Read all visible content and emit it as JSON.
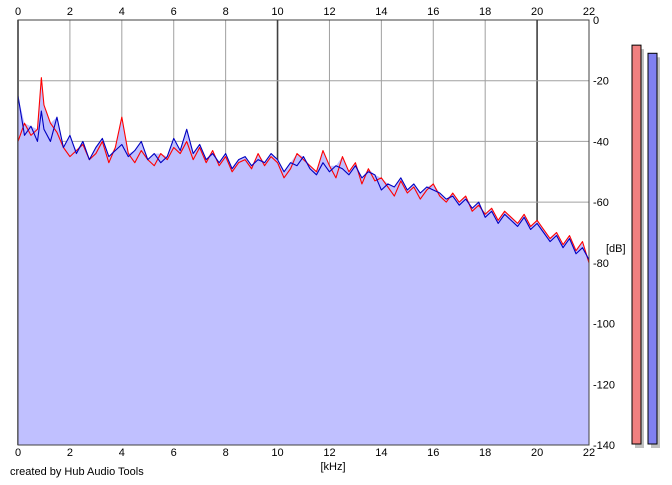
{
  "chart_data": {
    "type": "line",
    "xlabel": "[kHz]",
    "ylabel": "[dB]",
    "xlim": [
      0,
      22
    ],
    "ylim": [
      -140,
      0
    ],
    "x_ticks": [
      0,
      2,
      4,
      6,
      8,
      10,
      12,
      14,
      16,
      18,
      20,
      22
    ],
    "y_ticks": [
      0,
      -20,
      -40,
      -60,
      -80,
      -100,
      -120,
      -140
    ],
    "grid": true,
    "fill_color": "#c0c0ff",
    "series": [
      {
        "color": "#ff0000",
        "x": [
          0,
          0.25,
          0.5,
          0.75,
          0.9,
          1,
          1.25,
          1.5,
          1.75,
          2,
          2.25,
          2.5,
          2.75,
          3,
          3.25,
          3.5,
          3.75,
          4,
          4.25,
          4.5,
          4.75,
          5,
          5.25,
          5.5,
          5.75,
          6,
          6.25,
          6.5,
          6.75,
          7,
          7.25,
          7.5,
          7.75,
          8,
          8.25,
          8.5,
          8.75,
          9,
          9.25,
          9.5,
          9.75,
          10,
          10.25,
          10.5,
          10.75,
          11,
          11.25,
          11.5,
          11.75,
          12,
          12.25,
          12.5,
          12.75,
          13,
          13.25,
          13.5,
          13.75,
          14,
          14.25,
          14.5,
          14.75,
          15,
          15.25,
          15.5,
          15.75,
          16,
          16.25,
          16.5,
          16.75,
          17,
          17.25,
          17.5,
          17.75,
          18,
          18.25,
          18.5,
          18.75,
          19,
          19.25,
          19.5,
          19.75,
          20,
          20.25,
          20.5,
          20.75,
          21,
          21.25,
          21.5,
          21.75,
          22
        ],
        "values": [
          -40,
          -34,
          -38,
          -36,
          -19,
          -28,
          -34,
          -37,
          -42,
          -45,
          -43,
          -41,
          -46,
          -44,
          -40,
          -47,
          -42,
          -32,
          -44,
          -47,
          -43,
          -46,
          -48,
          -44,
          -46,
          -42,
          -44,
          -40,
          -46,
          -42,
          -47,
          -43,
          -48,
          -45,
          -50,
          -47,
          -46,
          -49,
          -44,
          -48,
          -45,
          -47,
          -52,
          -49,
          -44,
          -46,
          -48,
          -50,
          -43,
          -48,
          -52,
          -45,
          -50,
          -47,
          -54,
          -49,
          -53,
          -52,
          -55,
          -58,
          -53,
          -57,
          -55,
          -59,
          -56,
          -54,
          -58,
          -60,
          -57,
          -60,
          -58,
          -63,
          -61,
          -64,
          -62,
          -66,
          -63,
          -65,
          -67,
          -64,
          -68,
          -66,
          -69,
          -72,
          -70,
          -74,
          -71,
          -76,
          -73,
          -80
        ]
      },
      {
        "color": "#0000c0",
        "x": [
          0,
          0.25,
          0.5,
          0.75,
          0.9,
          1,
          1.25,
          1.5,
          1.75,
          2,
          2.25,
          2.5,
          2.75,
          3,
          3.25,
          3.5,
          3.75,
          4,
          4.25,
          4.5,
          4.75,
          5,
          5.25,
          5.5,
          5.75,
          6,
          6.25,
          6.5,
          6.75,
          7,
          7.25,
          7.5,
          7.75,
          8,
          8.25,
          8.5,
          8.75,
          9,
          9.25,
          9.5,
          9.75,
          10,
          10.25,
          10.5,
          10.75,
          11,
          11.25,
          11.5,
          11.75,
          12,
          12.25,
          12.5,
          12.75,
          13,
          13.25,
          13.5,
          13.75,
          14,
          14.25,
          14.5,
          14.75,
          15,
          15.25,
          15.5,
          15.75,
          16,
          16.25,
          16.5,
          16.75,
          17,
          17.25,
          17.5,
          17.75,
          18,
          18.25,
          18.5,
          18.75,
          19,
          19.25,
          19.5,
          19.75,
          20,
          20.25,
          20.5,
          20.75,
          21,
          21.25,
          21.5,
          21.75,
          22
        ],
        "values": [
          -25,
          -38,
          -35,
          -40,
          -30,
          -36,
          -40,
          -32,
          -42,
          -38,
          -44,
          -40,
          -46,
          -42,
          -39,
          -45,
          -43,
          -41,
          -45,
          -43,
          -40,
          -46,
          -44,
          -47,
          -45,
          -39,
          -43,
          -36,
          -44,
          -41,
          -46,
          -44,
          -47,
          -44,
          -49,
          -46,
          -45,
          -48,
          -46,
          -47,
          -44,
          -46,
          -50,
          -47,
          -48,
          -45,
          -49,
          -51,
          -47,
          -50,
          -48,
          -49,
          -51,
          -48,
          -52,
          -50,
          -51,
          -56,
          -54,
          -55,
          -52,
          -56,
          -54,
          -57,
          -55,
          -56,
          -57,
          -59,
          -58,
          -61,
          -59,
          -62,
          -60,
          -65,
          -63,
          -67,
          -64,
          -66,
          -68,
          -65,
          -69,
          -67,
          -70,
          -73,
          -71,
          -75,
          -72,
          -77,
          -75,
          -79
        ]
      }
    ],
    "level_meters": [
      {
        "color": "#f08080",
        "level": 0.98
      },
      {
        "color": "#8080f0",
        "level": 0.96
      }
    ]
  },
  "footer": {
    "credit": "created by Hub Audio Tools"
  }
}
